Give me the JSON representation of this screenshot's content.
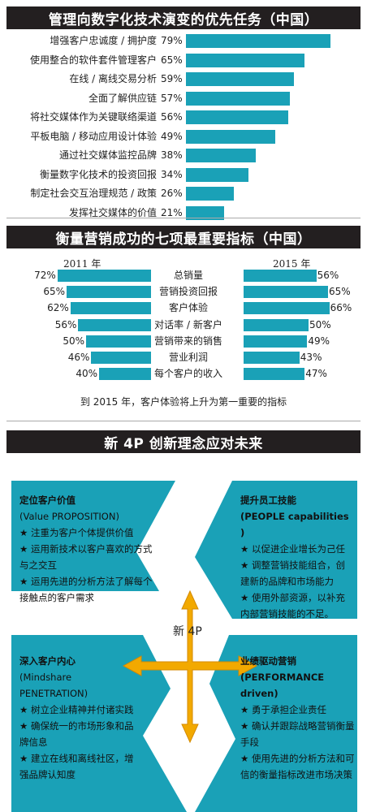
{
  "section1": {
    "title": "管理向数字化技术演变的优先任务（中国）"
  },
  "section2": {
    "title": "衡量营销成功的七项最重要指标（中国）"
  },
  "section3": {
    "title": "新 4P 创新理念应对未来"
  },
  "chart_data": [
    {
      "type": "bar",
      "orientation": "horizontal",
      "title": "管理向数字化技术演变的优先任务（中国）",
      "categories": [
        "增强客户忠诚度 / 拥护度",
        "使用整合的软件套件管理客户",
        "在线 / 离线交易分析",
        "全面了解供应链",
        "将社交媒体作为关键联络渠道",
        "平板电脑 / 移动应用设计体验",
        "通过社交媒体监控品牌",
        "衡量数字化技术的投资回报",
        "制定社会交互治理规范 / 政策",
        "发挥社交媒体的价值"
      ],
      "values": [
        79,
        65,
        59,
        57,
        56,
        49,
        38,
        34,
        26,
        21
      ],
      "labels": [
        "79%",
        "65%",
        "59%",
        "57%",
        "56%",
        "49%",
        "38%",
        "34%",
        "26%",
        "21%"
      ],
      "unit": "%"
    },
    {
      "type": "bar",
      "orientation": "horizontal-butterfly",
      "title": "衡量营销成功的七项最重要指标（中国）",
      "categories": [
        "总销量",
        "营销投资回报",
        "客户体验",
        "对话率 / 新客户",
        "营销带来的销售",
        "营业利润",
        "每个客户的收入"
      ],
      "series": [
        {
          "name": "2011 年",
          "values": [
            72,
            65,
            62,
            56,
            50,
            46,
            40
          ],
          "labels": [
            "72%",
            "65%",
            "62%",
            "56%",
            "50%",
            "46%",
            "40%"
          ]
        },
        {
          "name": "2015 年",
          "values": [
            56,
            65,
            66,
            50,
            49,
            43,
            47
          ],
          "labels": [
            "56%",
            "65%",
            "66%",
            "50%",
            "49%",
            "43%",
            "47%"
          ]
        }
      ],
      "unit": "%",
      "note": "到 2015 年，客户体验将上升为第一重要的指标"
    }
  ],
  "quadrants": {
    "value": {
      "title": "定位客户价值",
      "subtitle": "(Value PROPOSITION)",
      "items": [
        "★ 注重为客户个体提供价值",
        "★ 运用新技术以客户喜欢的方式与之交互",
        "★ 运用先进的分析方法了解每个接触点的客户需求"
      ]
    },
    "people": {
      "title": "提升员工技能",
      "subtitle": "(PEOPLE capabilities )",
      "items": [
        "★ 以促进企业增长为己任",
        "★ 调整营销技能组合，创建新的品牌和市场能力",
        "★ 使用外部资源，以补充内部营销技能的不足。"
      ]
    },
    "mindshare": {
      "title": "深入客户内心",
      "subtitle": "(Mindshare PENETRATION)",
      "items": [
        "★ 树立企业精神并付诸实践",
        "★ 确保统一的市场形象和品牌信息",
        "★ 建立在线和离线社区，增强品牌认知度"
      ]
    },
    "performance": {
      "title": "业绩驱动营销",
      "subtitle": "(PERFORMANCE driven)",
      "items": [
        "★ 勇于承担企业责任",
        "★ 确认并跟踪战略营销衡量手段",
        "★ 使用先进的分析方法和可信的衡量指标改进市场决策"
      ]
    },
    "center": "新 4P"
  },
  "colors": {
    "bar": "#1aa1b7",
    "header_bg": "#231f20",
    "arrow": "#f2a900",
    "quad_bg": "#1aa1b7"
  }
}
